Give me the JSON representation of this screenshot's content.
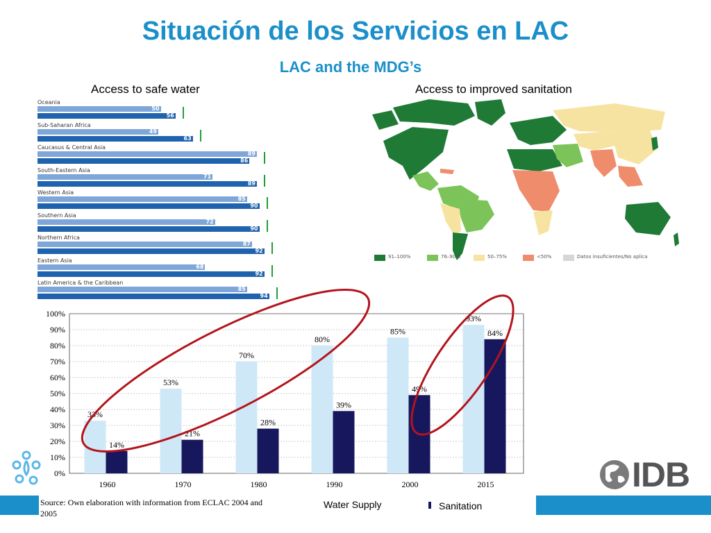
{
  "header": {
    "title": "Situación de los Servicios en LAC",
    "subtitle": "LAC and the MDG’s"
  },
  "panels": {
    "water_label": "Access to safe water",
    "sanitation_label": "Access to improved sanitation"
  },
  "water_regions": [
    {
      "name": "Oceania",
      "v1990": 50,
      "v2006": 56
    },
    {
      "name": "Sub-Saharan Africa",
      "v1990": 49,
      "v2006": 63
    },
    {
      "name": "Caucasus & Central Asia",
      "v1990": 89,
      "v2006": 86
    },
    {
      "name": "South-Eastern Asia",
      "v1990": 71,
      "v2006": 89
    },
    {
      "name": "Western Asia",
      "v1990": 85,
      "v2006": 90
    },
    {
      "name": "Southern Asia",
      "v1990": 72,
      "v2006": 90
    },
    {
      "name": "Northern Africa",
      "v1990": 87,
      "v2006": 92
    },
    {
      "name": "Eastern Asia",
      "v1990": 68,
      "v2006": 92
    },
    {
      "name": "Latin America & the Caribbean",
      "v1990": 85,
      "v2006": 94
    }
  ],
  "map_legend": [
    {
      "label": "91–100%",
      "color": "#1f7a35"
    },
    {
      "label": "76–90%",
      "color": "#7cc35a"
    },
    {
      "label": "50–75%",
      "color": "#f7e3a1"
    },
    {
      "label": "<50%",
      "color": "#ef8c6c"
    },
    {
      "label": "Datos insuficientes/No aplica",
      "color": "#d6d6d6"
    }
  ],
  "chart_data": {
    "type": "bar",
    "categories": [
      "1960",
      "1970",
      "1980",
      "1990",
      "2000",
      "2015"
    ],
    "series": [
      {
        "name": "Water Supply",
        "color": "#cfe8f7",
        "values": [
          33,
          53,
          70,
          80,
          85,
          93
        ],
        "labels": [
          "33%",
          "53%",
          "70%",
          "80%",
          "85%",
          "93%"
        ]
      },
      {
        "name": "Sanitation",
        "color": "#17175e",
        "values": [
          14,
          21,
          28,
          39,
          49,
          84
        ],
        "labels": [
          "14%",
          "21%",
          "28%",
          "39%",
          "49%",
          "84%"
        ]
      }
    ],
    "ylim": [
      0,
      100
    ],
    "yticks": [
      "0%",
      "10%",
      "20%",
      "30%",
      "40%",
      "50%",
      "60%",
      "70%",
      "80%",
      "90%",
      "100%"
    ],
    "grid": true,
    "legend": "bottom"
  },
  "source_note": "Source: Own elaboration with information from ECLAC 2004 and 2005",
  "logos": {
    "idb_text": "IDB"
  },
  "colors": {
    "accent": "#1a8fc9",
    "highlight": "#b3141c"
  }
}
